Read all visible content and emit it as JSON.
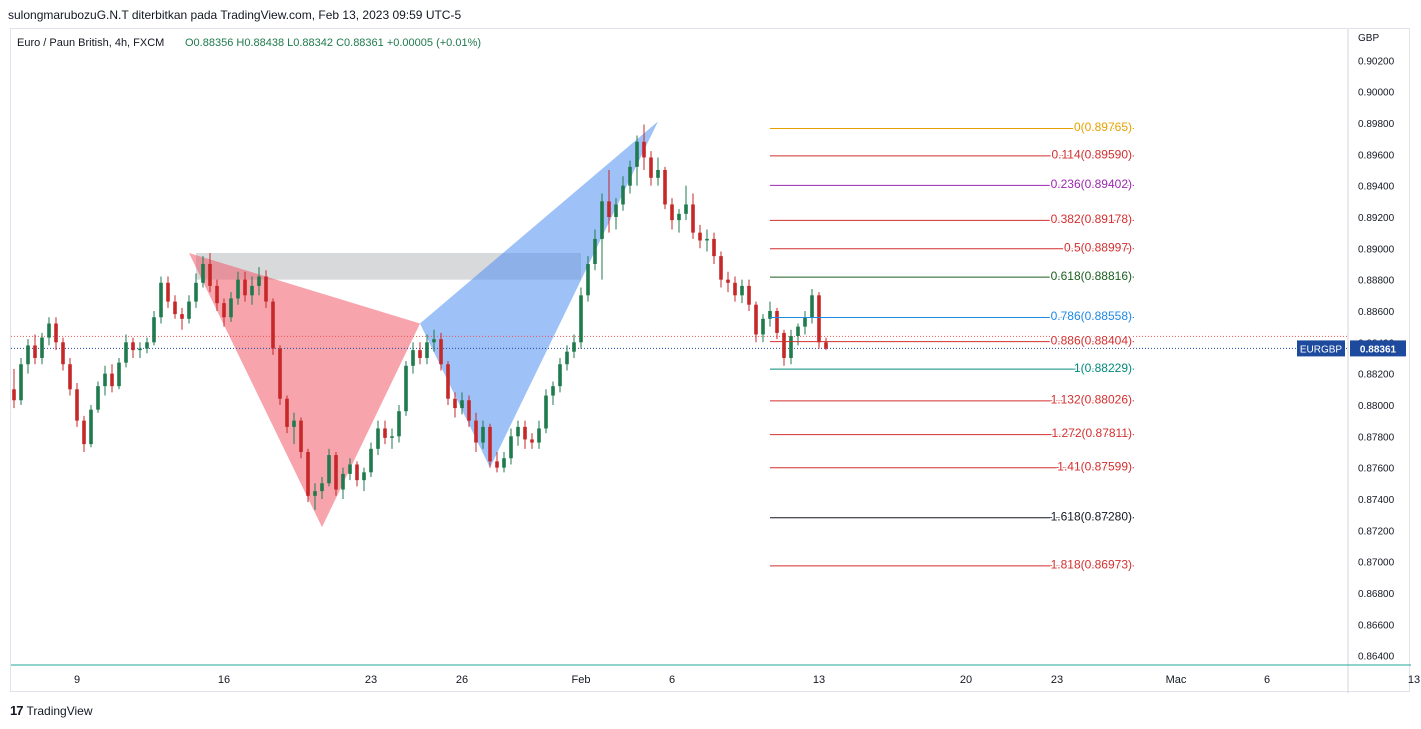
{
  "header": {
    "publisher_line": "sulongmarubozuG.N.T diterbitkan pada TradingView.com, Feb 13, 2023 09:59 UTC-5",
    "symbol_line": "Euro / Paun British, 4h, FXCM",
    "ohlc": "O0.88356  H0.88438  L0.88342  C0.88361  +0.00005 (+0.01%)"
  },
  "footer": {
    "brand": "TradingView",
    "logo_glyph": "17"
  },
  "chart_data": {
    "type": "candlestick",
    "symbol": "EURGBP",
    "last_price": "0.88361",
    "currency_label": "GBP",
    "colors": {
      "up": "#26a69a",
      "down": "#ef5350",
      "candle_up": "#1f7a4d",
      "candle_down": "#c62828",
      "accent": "#1e4a9e"
    },
    "ylim": [
      0.8634,
      0.904
    ],
    "y_ticks": [
      "0.90200",
      "0.90000",
      "0.89800",
      "0.89600",
      "0.89400",
      "0.89200",
      "0.89000",
      "0.88800",
      "0.88600",
      "0.88400",
      "0.88200",
      "0.88000",
      "0.87800",
      "0.87600",
      "0.87400",
      "0.87200",
      "0.87000",
      "0.86800",
      "0.86600",
      "0.86400"
    ],
    "x_ticks": [
      "9",
      "16",
      "23",
      "26",
      "Feb",
      "6",
      "13",
      "20",
      "23",
      "Mac",
      "6",
      "13"
    ],
    "x_tick_index": [
      9,
      30,
      51,
      64,
      81,
      94,
      115,
      136,
      149,
      166,
      179,
      200
    ],
    "candles": [
      [
        0.881,
        0.8823,
        0.8798,
        0.8803
      ],
      [
        0.8803,
        0.883,
        0.88,
        0.8826
      ],
      [
        0.8826,
        0.8842,
        0.882,
        0.8838
      ],
      [
        0.8838,
        0.8845,
        0.8826,
        0.883
      ],
      [
        0.883,
        0.8846,
        0.8826,
        0.8843
      ],
      [
        0.8843,
        0.8856,
        0.8838,
        0.8852
      ],
      [
        0.8852,
        0.8856,
        0.8835,
        0.884
      ],
      [
        0.884,
        0.8843,
        0.8822,
        0.8826
      ],
      [
        0.8826,
        0.883,
        0.8806,
        0.881
      ],
      [
        0.881,
        0.8814,
        0.8786,
        0.879
      ],
      [
        0.879,
        0.8793,
        0.877,
        0.8775
      ],
      [
        0.8775,
        0.88,
        0.8773,
        0.8797
      ],
      [
        0.8797,
        0.8815,
        0.8795,
        0.8812
      ],
      [
        0.8812,
        0.8825,
        0.8806,
        0.882
      ],
      [
        0.882,
        0.8826,
        0.8808,
        0.8812
      ],
      [
        0.8812,
        0.883,
        0.881,
        0.8827
      ],
      [
        0.8827,
        0.8845,
        0.8824,
        0.884
      ],
      [
        0.884,
        0.8843,
        0.883,
        0.8835
      ],
      [
        0.8835,
        0.884,
        0.883,
        0.8836
      ],
      [
        0.8836,
        0.8843,
        0.8833,
        0.884
      ],
      [
        0.884,
        0.886,
        0.8838,
        0.8856
      ],
      [
        0.8856,
        0.8882,
        0.8852,
        0.8878
      ],
      [
        0.8878,
        0.8882,
        0.8862,
        0.8866
      ],
      [
        0.8866,
        0.887,
        0.8855,
        0.8858
      ],
      [
        0.8858,
        0.8862,
        0.8848,
        0.8855
      ],
      [
        0.8855,
        0.887,
        0.8852,
        0.8866
      ],
      [
        0.8866,
        0.8884,
        0.8862,
        0.8878
      ],
      [
        0.8878,
        0.8895,
        0.8875,
        0.889
      ],
      [
        0.889,
        0.8897,
        0.8872,
        0.8876
      ],
      [
        0.8876,
        0.888,
        0.886,
        0.8865
      ],
      [
        0.8865,
        0.8868,
        0.885,
        0.8856
      ],
      [
        0.8856,
        0.8872,
        0.8853,
        0.8868
      ],
      [
        0.8868,
        0.8885,
        0.8864,
        0.888
      ],
      [
        0.888,
        0.8885,
        0.8866,
        0.887
      ],
      [
        0.887,
        0.8882,
        0.8864,
        0.8876
      ],
      [
        0.8876,
        0.8888,
        0.887,
        0.8882
      ],
      [
        0.8882,
        0.8886,
        0.8862,
        0.8866
      ],
      [
        0.8866,
        0.8868,
        0.8832,
        0.8836
      ],
      [
        0.8836,
        0.8838,
        0.88,
        0.8804
      ],
      [
        0.8804,
        0.8806,
        0.8782,
        0.8786
      ],
      [
        0.8786,
        0.8795,
        0.8775,
        0.879
      ],
      [
        0.879,
        0.8792,
        0.8766,
        0.877
      ],
      [
        0.877,
        0.8772,
        0.8738,
        0.8742
      ],
      [
        0.8742,
        0.875,
        0.8733,
        0.8745
      ],
      [
        0.8745,
        0.8754,
        0.874,
        0.875
      ],
      [
        0.875,
        0.8772,
        0.8748,
        0.8768
      ],
      [
        0.8768,
        0.877,
        0.8742,
        0.8746
      ],
      [
        0.8746,
        0.876,
        0.874,
        0.8756
      ],
      [
        0.8756,
        0.8766,
        0.8752,
        0.8762
      ],
      [
        0.8762,
        0.8764,
        0.8748,
        0.8752
      ],
      [
        0.8752,
        0.876,
        0.8745,
        0.8757
      ],
      [
        0.8757,
        0.8776,
        0.8754,
        0.8772
      ],
      [
        0.8772,
        0.879,
        0.8768,
        0.8785
      ],
      [
        0.8785,
        0.879,
        0.8775,
        0.8779
      ],
      [
        0.8779,
        0.8785,
        0.8772,
        0.878
      ],
      [
        0.878,
        0.88,
        0.8776,
        0.8796
      ],
      [
        0.8796,
        0.8828,
        0.8793,
        0.8825
      ],
      [
        0.8825,
        0.884,
        0.882,
        0.8835
      ],
      [
        0.8835,
        0.884,
        0.8826,
        0.883
      ],
      [
        0.883,
        0.8845,
        0.8826,
        0.884
      ],
      [
        0.884,
        0.8848,
        0.8834,
        0.8842
      ],
      [
        0.8842,
        0.8846,
        0.8822,
        0.8826
      ],
      [
        0.8826,
        0.8828,
        0.88,
        0.8804
      ],
      [
        0.8804,
        0.8808,
        0.8792,
        0.8798
      ],
      [
        0.8798,
        0.8808,
        0.8794,
        0.8803
      ],
      [
        0.8803,
        0.8806,
        0.8786,
        0.879
      ],
      [
        0.879,
        0.8795,
        0.877,
        0.8776
      ],
      [
        0.8776,
        0.879,
        0.8772,
        0.8786
      ],
      [
        0.8786,
        0.8788,
        0.876,
        0.8764
      ],
      [
        0.8764,
        0.877,
        0.8757,
        0.876
      ],
      [
        0.876,
        0.877,
        0.8757,
        0.8766
      ],
      [
        0.8766,
        0.8785,
        0.8762,
        0.878
      ],
      [
        0.878,
        0.879,
        0.8774,
        0.8786
      ],
      [
        0.8786,
        0.879,
        0.8772,
        0.8778
      ],
      [
        0.8778,
        0.8782,
        0.8772,
        0.8776
      ],
      [
        0.8776,
        0.879,
        0.8772,
        0.8785
      ],
      [
        0.8785,
        0.881,
        0.8782,
        0.8806
      ],
      [
        0.8806,
        0.8815,
        0.88,
        0.8812
      ],
      [
        0.8812,
        0.883,
        0.8808,
        0.8826
      ],
      [
        0.8826,
        0.8838,
        0.8822,
        0.8834
      ],
      [
        0.8834,
        0.8845,
        0.883,
        0.884
      ],
      [
        0.884,
        0.8875,
        0.8836,
        0.887
      ],
      [
        0.887,
        0.8895,
        0.8866,
        0.889
      ],
      [
        0.889,
        0.8912,
        0.8886,
        0.8906
      ],
      [
        0.8906,
        0.8935,
        0.888,
        0.893
      ],
      [
        0.893,
        0.895,
        0.891,
        0.892
      ],
      [
        0.892,
        0.8932,
        0.8912,
        0.8928
      ],
      [
        0.8928,
        0.8946,
        0.8924,
        0.894
      ],
      [
        0.894,
        0.8956,
        0.8935,
        0.8952
      ],
      [
        0.8952,
        0.8972,
        0.894,
        0.8968
      ],
      [
        0.8968,
        0.8979,
        0.895,
        0.8958
      ],
      [
        0.8958,
        0.8962,
        0.894,
        0.8945
      ],
      [
        0.8945,
        0.8958,
        0.894,
        0.895
      ],
      [
        0.895,
        0.8952,
        0.8925,
        0.8928
      ],
      [
        0.8928,
        0.8932,
        0.8912,
        0.8918
      ],
      [
        0.8918,
        0.8925,
        0.891,
        0.8922
      ],
      [
        0.8922,
        0.894,
        0.8918,
        0.8928
      ],
      [
        0.8928,
        0.8935,
        0.8906,
        0.891
      ],
      [
        0.891,
        0.8915,
        0.89,
        0.8905
      ],
      [
        0.8905,
        0.8912,
        0.8898,
        0.8906
      ],
      [
        0.8906,
        0.891,
        0.889,
        0.8895
      ],
      [
        0.8895,
        0.8898,
        0.8875,
        0.888
      ],
      [
        0.888,
        0.8885,
        0.8872,
        0.8878
      ],
      [
        0.8878,
        0.8882,
        0.8866,
        0.887
      ],
      [
        0.887,
        0.888,
        0.8865,
        0.8876
      ],
      [
        0.8876,
        0.888,
        0.886,
        0.8864
      ],
      [
        0.8864,
        0.8866,
        0.884,
        0.8845
      ],
      [
        0.8845,
        0.8858,
        0.884,
        0.8855
      ],
      [
        0.8855,
        0.8866,
        0.885,
        0.886
      ],
      [
        0.886,
        0.8862,
        0.8842,
        0.8846
      ],
      [
        0.8846,
        0.8848,
        0.8825,
        0.883
      ],
      [
        0.883,
        0.8848,
        0.8826,
        0.8844
      ],
      [
        0.8844,
        0.8852,
        0.8838,
        0.885
      ],
      [
        0.885,
        0.886,
        0.8845,
        0.8856
      ],
      [
        0.8856,
        0.8874,
        0.8852,
        0.887
      ],
      [
        0.887,
        0.8872,
        0.8836,
        0.884
      ],
      [
        0.884,
        0.8843,
        0.8835,
        0.8836
      ]
    ],
    "harmonic_pattern": {
      "red_triangle": [
        [
          25,
          0.8897
        ],
        [
          44,
          0.8722
        ],
        [
          58,
          0.8852
        ]
      ],
      "blue_triangle": [
        [
          58,
          0.8852
        ],
        [
          68,
          0.876
        ],
        [
          92,
          0.8981
        ]
      ],
      "gray_box": {
        "x1": 26,
        "x2": 81,
        "y1": 0.8897,
        "y2": 0.888
      }
    },
    "fib_levels": [
      {
        "label": "0(0.89765)",
        "value": 0.89765,
        "color": "#e6a100"
      },
      {
        "label": "0.114(0.89590)",
        "value": 0.8959,
        "color": "#d32f2f"
      },
      {
        "label": "0.236(0.89402)",
        "value": 0.89402,
        "color": "#9c27b0"
      },
      {
        "label": "0.382(0.89178)",
        "value": 0.89178,
        "color": "#d32f2f"
      },
      {
        "label": "0.5(0.88997)",
        "value": 0.88997,
        "color": "#d32f2f"
      },
      {
        "label": "0.618(0.88816)",
        "value": 0.88816,
        "color": "#1b5e20"
      },
      {
        "label": "0.786(0.88558)",
        "value": 0.88558,
        "color": "#1e88e5"
      },
      {
        "label": "0.886(0.88404)",
        "value": 0.88404,
        "color": "#d32f2f"
      },
      {
        "label": "1(0.88229)",
        "value": 0.88229,
        "color": "#00897b"
      },
      {
        "label": "1.132(0.88026)",
        "value": 0.88026,
        "color": "#d32f2f"
      },
      {
        "label": "1.272(0.87811)",
        "value": 0.87811,
        "color": "#d32f2f"
      },
      {
        "label": "1.41(0.87599)",
        "value": 0.87599,
        "color": "#d32f2f"
      },
      {
        "label": "1.618(0.87280)",
        "value": 0.8728,
        "color": "#131722"
      },
      {
        "label": "1.818(0.86973)",
        "value": 0.86973,
        "color": "#d32f2f"
      }
    ],
    "fib_x_start": 108,
    "fib_x_end": 160,
    "ref_lines": [
      {
        "value": 0.88438,
        "color": "#ef5350"
      },
      {
        "value": 0.88361,
        "color": "#1e4a9e"
      }
    ]
  }
}
